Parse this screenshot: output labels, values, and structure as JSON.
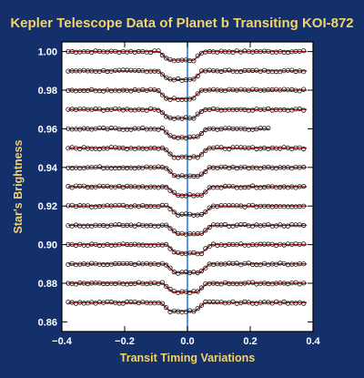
{
  "chart_data": {
    "type": "scatter",
    "title": "Kepler Telescope Data of Planet b Transiting KOI-872",
    "xlabel": "Transit Timing Variations",
    "ylabel": "Star's Brightness",
    "xlim": [
      -0.4,
      0.4
    ],
    "ylim": [
      0.855,
      1.005
    ],
    "x_ticks": [
      "−0.4",
      "−0.2",
      "0.0",
      "0.2",
      "0.4"
    ],
    "y_ticks": [
      "0.86",
      "0.88",
      "0.90",
      "0.92",
      "0.94",
      "0.96",
      "0.98",
      "1.00"
    ],
    "grid": false,
    "reference_line_x": 0.0,
    "transit": {
      "depth": 0.0045,
      "ingress_duration": 0.03,
      "flat_bottom_half_width": 0.04
    },
    "series": [
      {
        "baseline": 1.0,
        "center": -0.02,
        "x_end": 0.38
      },
      {
        "baseline": 0.99,
        "center": -0.022,
        "x_end": 0.38
      },
      {
        "baseline": 0.98,
        "center": -0.025,
        "x_end": 0.38
      },
      {
        "baseline": 0.97,
        "center": -0.02,
        "x_end": 0.38
      },
      {
        "baseline": 0.96,
        "center": -0.01,
        "x_end": 0.26
      },
      {
        "baseline": 0.95,
        "center": -0.005,
        "x_end": 0.38
      },
      {
        "baseline": 0.94,
        "center": 0.0,
        "x_end": 0.38
      },
      {
        "baseline": 0.93,
        "center": 0.005,
        "x_end": 0.38
      },
      {
        "baseline": 0.92,
        "center": 0.008,
        "x_end": 0.38
      },
      {
        "baseline": 0.91,
        "center": 0.006,
        "x_end": 0.38
      },
      {
        "baseline": 0.9,
        "center": 0.004,
        "x_end": 0.38
      },
      {
        "baseline": 0.89,
        "center": 0.0,
        "x_end": 0.38
      },
      {
        "baseline": 0.88,
        "center": -0.008,
        "x_end": 0.38
      },
      {
        "baseline": 0.87,
        "center": -0.015,
        "x_end": 0.38
      }
    ],
    "colors": {
      "background": "#14306a",
      "plot_area": "#ffffff",
      "model_line": "#9b1c1c",
      "marker_edge": "#111111",
      "reference_line": "#2f7fd8",
      "title": "#f5d36a",
      "tick_labels": "#ffffff"
    }
  }
}
